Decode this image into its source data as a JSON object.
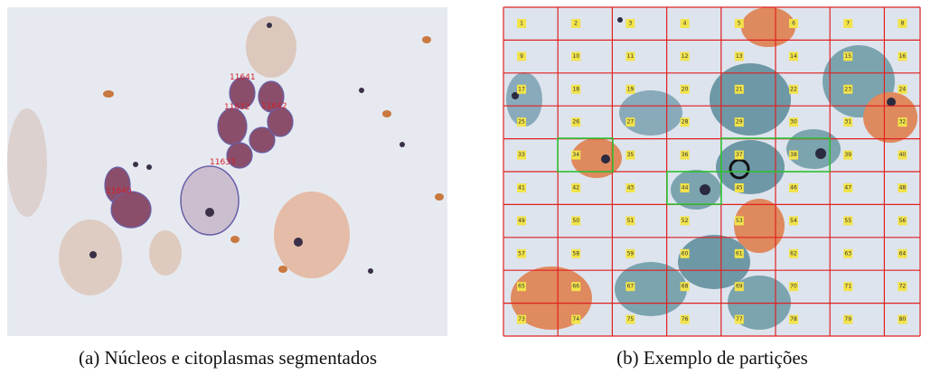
{
  "figure": {
    "panels": [
      {
        "caption": "(a) Núcleos e citoplasmas segmentados",
        "annotations": [
          "11641",
          "11632",
          "11642",
          "11633",
          "11640"
        ]
      },
      {
        "caption": "(b) Exemplo de partições",
        "cell_labels": [
          1,
          2,
          3,
          4,
          5,
          6,
          7,
          8,
          9,
          10,
          11,
          12,
          13,
          14,
          15,
          16,
          17,
          18,
          19,
          20,
          21,
          22,
          23,
          24,
          25,
          26,
          27,
          28,
          29,
          30,
          31,
          32,
          33,
          34,
          35,
          36,
          37,
          38,
          39,
          40,
          41,
          42,
          43,
          44,
          45,
          46,
          47,
          48,
          49,
          50,
          51,
          52,
          53,
          54,
          55,
          56,
          57,
          58,
          59,
          60,
          61,
          62,
          63,
          64,
          65,
          66,
          67,
          68,
          69,
          70,
          71,
          72,
          73,
          74,
          75,
          76,
          77,
          78,
          79,
          80
        ]
      }
    ]
  }
}
